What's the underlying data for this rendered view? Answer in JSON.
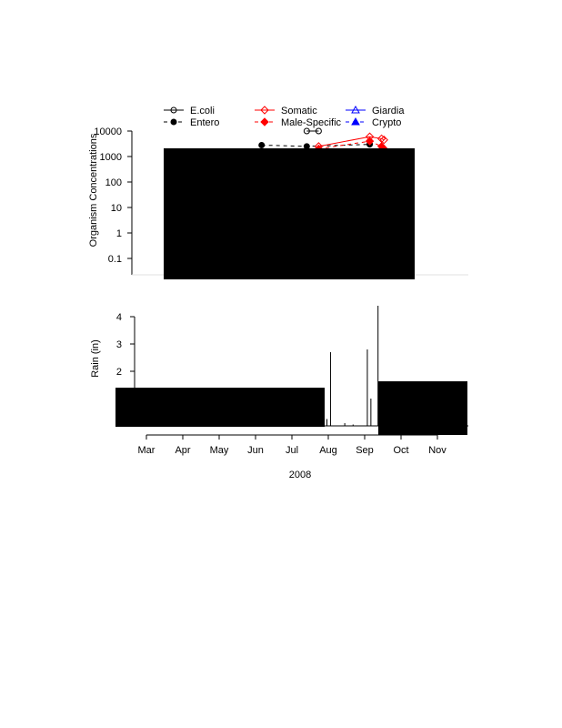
{
  "chart_data": [
    {
      "type": "scatter",
      "ylabel": "Organism Concentrations",
      "yscale": "log",
      "ylim": [
        0.1,
        10000
      ],
      "yticks": [
        "0.1",
        "1",
        "10",
        "100",
        "1000",
        "10000"
      ],
      "legend": {
        "placement": "top",
        "columns": 3,
        "entries": [
          {
            "name": "E.coli",
            "color": "#000000",
            "marker": "open-circle",
            "line": "solid"
          },
          {
            "name": "Entero",
            "color": "#000000",
            "marker": "filled-circle",
            "line": "dashed"
          },
          {
            "name": "Somatic",
            "color": "#ff0000",
            "marker": "open-diamond",
            "line": "solid"
          },
          {
            "name": "Male-Specific",
            "color": "#ff0000",
            "marker": "filled-diamond",
            "line": "dashed"
          },
          {
            "name": "Giardia",
            "color": "#0000ff",
            "marker": "open-triangle",
            "line": "solid"
          },
          {
            "name": "Crypto",
            "color": "#0000ff",
            "marker": "filled-triangle",
            "line": "dashed"
          }
        ]
      },
      "series": [
        {
          "name": "E.coli",
          "points": [
            {
              "x": "2008-07-14",
              "y": 10000
            },
            {
              "x": "2008-07-24",
              "y": 10000
            }
          ]
        },
        {
          "name": "Entero",
          "points": [
            {
              "x": "2008-06-04",
              "y": 1500
            },
            {
              "x": "2008-06-06",
              "y": 2800
            },
            {
              "x": "2008-07-14",
              "y": 2500
            },
            {
              "x": "2008-09-05",
              "y": 3000
            }
          ]
        },
        {
          "name": "Somatic",
          "points": [
            {
              "x": "2008-07-24",
              "y": 2500
            },
            {
              "x": "2008-09-05",
              "y": 6000
            },
            {
              "x": "2008-09-15",
              "y": 5000
            },
            {
              "x": "2008-09-17",
              "y": 4500
            }
          ]
        },
        {
          "name": "Male-Specific",
          "points": [
            {
              "x": "2008-07-24",
              "y": 2000
            },
            {
              "x": "2008-09-05",
              "y": 4000
            },
            {
              "x": "2008-09-15",
              "y": 2500
            },
            {
              "x": "2008-09-17",
              "y": 2000
            }
          ]
        }
      ]
    },
    {
      "type": "bar",
      "xlabel": "2008",
      "ylabel": "Rain (in)",
      "ylim": [
        0,
        4
      ],
      "yticks": [
        "2",
        "3",
        "4"
      ],
      "xticks": [
        "Mar",
        "Apr",
        "May",
        "Jun",
        "Jul",
        "Aug",
        "Sep",
        "Oct",
        "Nov"
      ],
      "series": [
        {
          "points": [
            {
              "x": "2008-07-31",
              "y": 0.25
            },
            {
              "x": "2008-08-03",
              "y": 2.7
            },
            {
              "x": "2008-08-15",
              "y": 0.1
            },
            {
              "x": "2008-08-22",
              "y": 0.05
            },
            {
              "x": "2008-09-03",
              "y": 2.8
            },
            {
              "x": "2008-09-06",
              "y": 1.0
            },
            {
              "x": "2008-09-12",
              "y": 4.4
            }
          ]
        }
      ]
    }
  ]
}
